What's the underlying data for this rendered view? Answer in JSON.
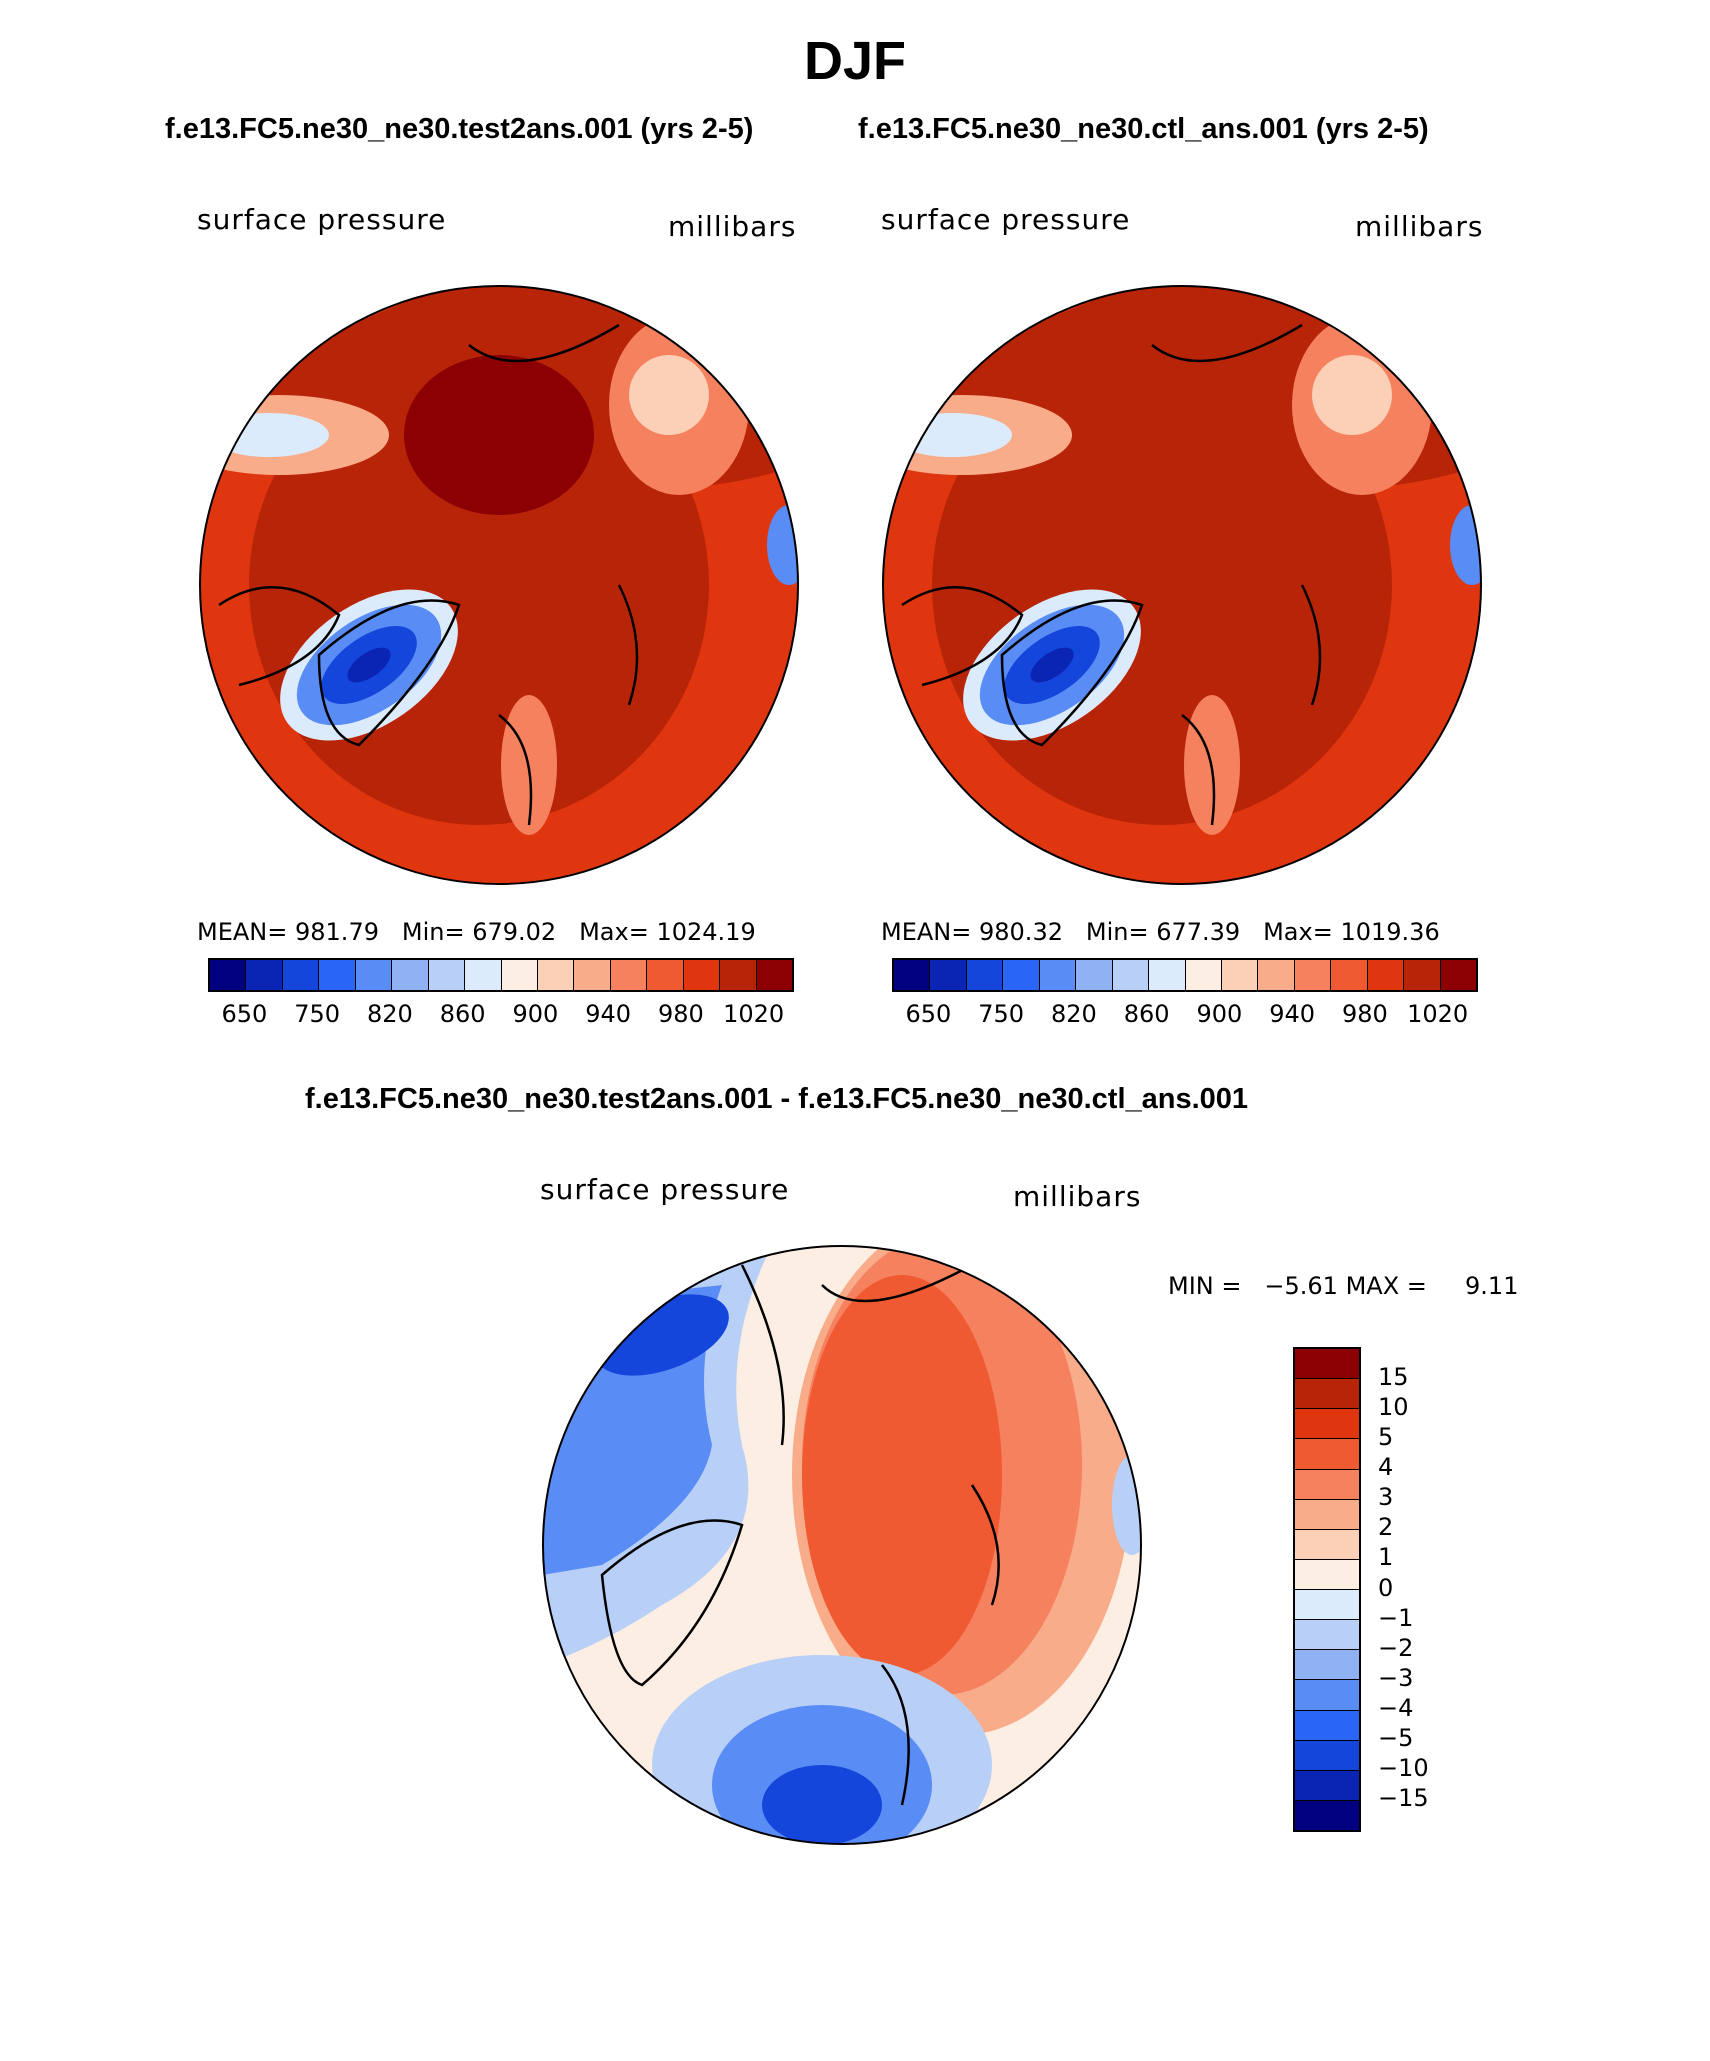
{
  "title": "DJF",
  "colors": {
    "pressure_scale": [
      "#000080",
      "#0a24b4",
      "#1546dc",
      "#2a66f5",
      "#5a8cf5",
      "#8fb2f5",
      "#b8d0f8",
      "#dcebfb",
      "#fdeee3",
      "#fbd0b6",
      "#f9ac8a",
      "#f6815f",
      "#f05a32",
      "#e0360f",
      "#b82408",
      "#8c0004"
    ],
    "diff_scale": [
      "#8c0004",
      "#b82408",
      "#e0360f",
      "#f05a32",
      "#f6815f",
      "#f9ac8a",
      "#fbd0b6",
      "#fdeee3",
      "#dcebfb",
      "#b8d0f8",
      "#8fb2f5",
      "#5a8cf5",
      "#2a66f5",
      "#1546dc",
      "#0a24b4",
      "#000080"
    ]
  },
  "chart_data": [
    {
      "type": "heatmap",
      "panel": "test",
      "title": "f.e13.FC5.ne30_ne30.test2ans.001 (yrs 2-5)",
      "variable": "surface pressure",
      "units": "millibars",
      "mean": "981.79",
      "min": "679.02",
      "max": "1024.19",
      "mean_label": "MEAN=",
      "min_label": "Min=",
      "max_label": "Max=",
      "colorbar_ticks": [
        "650",
        "750",
        "820",
        "860",
        "900",
        "940",
        "980",
        "1020"
      ]
    },
    {
      "type": "heatmap",
      "panel": "control",
      "title": "f.e13.FC5.ne30_ne30.ctl_ans.001 (yrs 2-5)",
      "variable": "surface pressure",
      "units": "millibars",
      "mean": "980.32",
      "min": "677.39",
      "max": "1019.36",
      "mean_label": "MEAN=",
      "min_label": "Min=",
      "max_label": "Max=",
      "colorbar_ticks": [
        "650",
        "750",
        "820",
        "860",
        "900",
        "940",
        "980",
        "1020"
      ]
    },
    {
      "type": "heatmap",
      "panel": "difference",
      "title": "f.e13.FC5.ne30_ne30.test2ans.001 - f.e13.FC5.ne30_ne30.ctl_ans.001",
      "variable": "surface pressure",
      "units": "millibars",
      "min_label": "MIN =",
      "min": "−5.61",
      "max_label": "MAX =",
      "max": "9.11",
      "colorbar_ticks": [
        "15",
        "10",
        "5",
        "4",
        "3",
        "2",
        "1",
        "0",
        "−1",
        "−2",
        "−3",
        "−4",
        "−5",
        "−10",
        "−15"
      ]
    }
  ]
}
